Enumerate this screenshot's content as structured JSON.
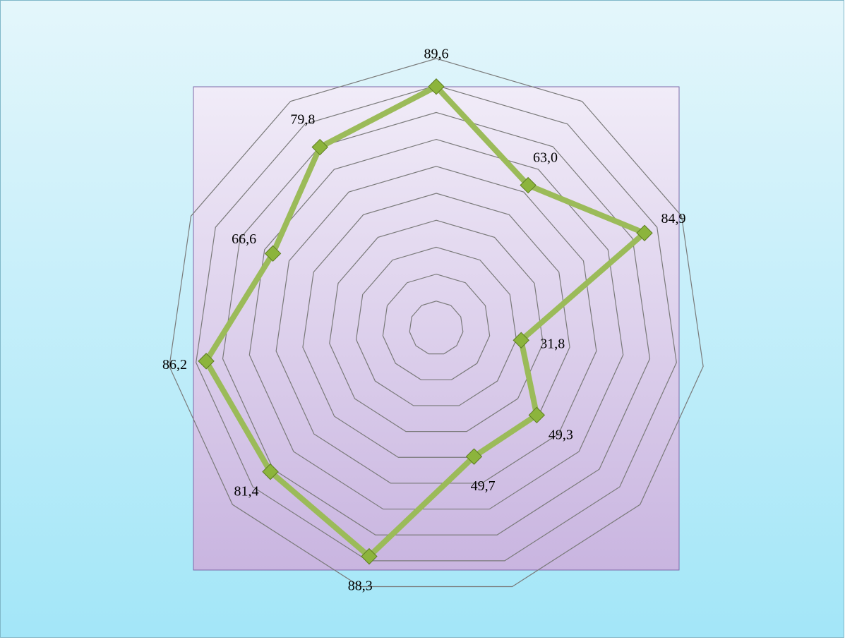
{
  "chart_data": {
    "type": "radar",
    "series": [
      {
        "color": "#9bbb59",
        "values": [
          89.6,
          63.0,
          84.9,
          31.8,
          49.3,
          49.7,
          88.3,
          81.4,
          86.2,
          66.6,
          79.8
        ],
        "value_labels": [
          "89,6",
          "63,0",
          "84,9",
          "31,8",
          "49,3",
          "49,7",
          "88,3",
          "81,4",
          "86,2",
          "66,6",
          "79,8"
        ]
      }
    ],
    "ylim": [
      0,
      100
    ],
    "grid": true,
    "grid_rings": 10
  }
}
